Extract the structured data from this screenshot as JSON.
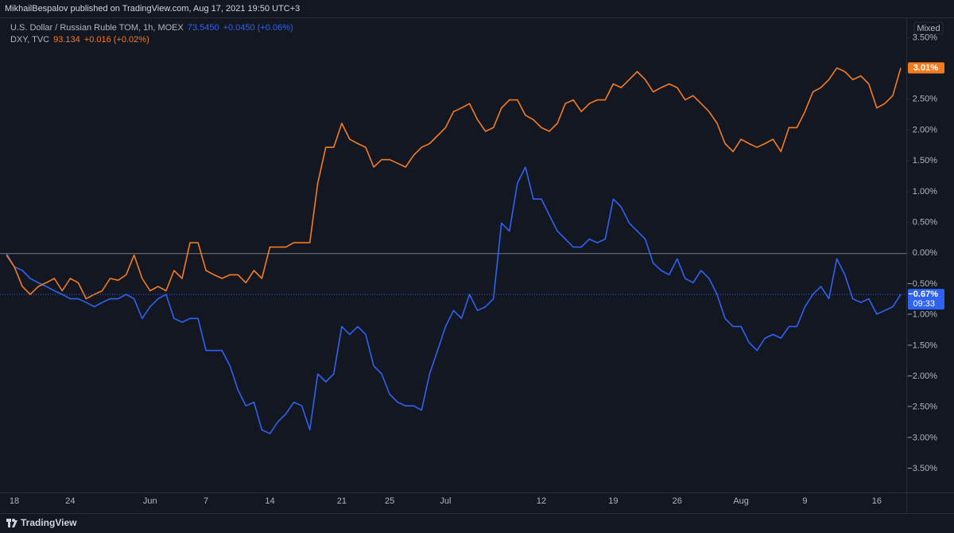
{
  "header": "MikhailBespalov published on TradingView.com, Aug 17, 2021 19:50 UTC+3",
  "footer": "TradingView",
  "chart_data": {
    "type": "line",
    "scale_mode": "Mixed",
    "categories": [
      null,
      "18",
      null,
      null,
      null,
      null,
      null,
      null,
      "24",
      null,
      null,
      null,
      null,
      null,
      null,
      null,
      null,
      null,
      "Jun",
      null,
      null,
      null,
      null,
      null,
      null,
      "7",
      null,
      null,
      null,
      null,
      null,
      null,
      null,
      "14",
      null,
      null,
      null,
      null,
      null,
      null,
      null,
      null,
      "21",
      null,
      null,
      null,
      null,
      null,
      "25",
      null,
      null,
      null,
      null,
      null,
      null,
      "Jul",
      null,
      null,
      null,
      null,
      null,
      null,
      null,
      null,
      null,
      null,
      null,
      "12",
      null,
      null,
      null,
      null,
      null,
      null,
      null,
      null,
      "19",
      null,
      null,
      null,
      null,
      null,
      null,
      null,
      "26",
      null,
      null,
      null,
      null,
      null,
      null,
      null,
      "Aug",
      null,
      null,
      null,
      null,
      null,
      null,
      null,
      "9",
      null,
      null,
      null,
      null,
      null,
      null,
      null,
      null,
      "16",
      null,
      null,
      null
    ],
    "series": [
      {
        "name": "U.S. Dollar / Russian Ruble TOM, 1h, MOEX",
        "legend_price": "73.5450",
        "legend_change": "+0.0450 (+0.06%)",
        "last_label": "−0.67%",
        "countdown": "09:33",
        "color": "#2f62f0",
        "values": [
          0,
          -0.22,
          -0.28,
          -0.41,
          -0.48,
          -0.54,
          -0.61,
          -0.67,
          -0.74,
          -0.74,
          -0.8,
          -0.87,
          -0.8,
          -0.74,
          -0.74,
          -0.67,
          -0.74,
          -1.06,
          -0.87,
          -0.74,
          -0.67,
          -1.06,
          -1.12,
          -1.06,
          -1.06,
          -1.58,
          -1.58,
          -1.58,
          -1.83,
          -2.22,
          -2.48,
          -2.42,
          -2.87,
          -2.93,
          -2.74,
          -2.61,
          -2.42,
          -2.48,
          -2.87,
          -1.96,
          -2.09,
          -1.96,
          -1.19,
          -1.32,
          -1.19,
          -1.32,
          -1.83,
          -1.96,
          -2.29,
          -2.42,
          -2.48,
          -2.48,
          -2.55,
          -1.96,
          -1.58,
          -1.19,
          -0.93,
          -1.06,
          -0.67,
          -0.93,
          -0.87,
          -0.74,
          0.49,
          0.36,
          1.14,
          1.4,
          0.88,
          0.88,
          0.62,
          0.36,
          0.23,
          0.1,
          0.1,
          0.23,
          0.17,
          0.23,
          0.88,
          0.75,
          0.49,
          0.36,
          0.23,
          -0.16,
          -0.28,
          -0.35,
          -0.09,
          -0.41,
          -0.48,
          -0.28,
          -0.41,
          -0.67,
          -1.06,
          -1.19,
          -1.19,
          -1.45,
          -1.58,
          -1.38,
          -1.32,
          -1.38,
          -1.19,
          -1.19,
          -0.87,
          -0.67,
          -0.54,
          -0.74,
          -0.09,
          -0.35,
          -0.74,
          -0.8,
          -0.74,
          -0.99,
          -0.93,
          -0.87,
          -0.67
        ]
      },
      {
        "name": "DXY, TVC",
        "legend_price": "93.134",
        "legend_change": "+0.016 (+0.02%)",
        "last_label": "3.01%",
        "color": "#f57b20",
        "values": [
          -0.03,
          -0.22,
          -0.54,
          -0.67,
          -0.54,
          -0.48,
          -0.41,
          -0.61,
          -0.41,
          -0.48,
          -0.74,
          -0.67,
          -0.61,
          -0.41,
          -0.44,
          -0.35,
          -0.03,
          -0.41,
          -0.61,
          -0.54,
          -0.61,
          -0.28,
          -0.41,
          0.17,
          0.17,
          -0.28,
          -0.35,
          -0.41,
          -0.35,
          -0.35,
          -0.48,
          -0.28,
          -0.41,
          0.1,
          0.1,
          0.1,
          0.17,
          0.17,
          0.17,
          1.14,
          1.72,
          1.72,
          2.11,
          1.85,
          1.78,
          1.72,
          1.4,
          1.52,
          1.52,
          1.46,
          1.4,
          1.59,
          1.72,
          1.78,
          1.91,
          2.04,
          2.3,
          2.36,
          2.43,
          2.17,
          1.98,
          2.04,
          2.36,
          2.49,
          2.49,
          2.24,
          2.17,
          2.04,
          1.98,
          2.11,
          2.43,
          2.49,
          2.3,
          2.43,
          2.49,
          2.49,
          2.75,
          2.69,
          2.82,
          2.95,
          2.82,
          2.62,
          2.69,
          2.75,
          2.69,
          2.49,
          2.56,
          2.43,
          2.3,
          2.11,
          1.78,
          1.65,
          1.85,
          1.78,
          1.72,
          1.78,
          1.85,
          1.65,
          2.04,
          2.04,
          2.3,
          2.62,
          2.69,
          2.82,
          3.01,
          2.95,
          2.82,
          2.88,
          2.75,
          2.36,
          2.43,
          2.56,
          3.01
        ]
      }
    ],
    "ylim": [
      -3.86,
      3.79
    ],
    "yticks": [
      {
        "value": 3.5,
        "label": "3.50%"
      },
      {
        "value": 3,
        "label": "3.00%"
      },
      {
        "value": 2.5,
        "label": "2.50%"
      },
      {
        "value": 2,
        "label": "2.00%"
      },
      {
        "value": 1.5,
        "label": "1.50%"
      },
      {
        "value": 1,
        "label": "1.00%"
      },
      {
        "value": 0.5,
        "label": "0.50%"
      },
      {
        "value": 0,
        "label": "0.00%"
      },
      {
        "value": -0.5,
        "label": "−0.50%"
      },
      {
        "value": -1,
        "label": "−1.00%"
      },
      {
        "value": -1.5,
        "label": "−1.50%"
      },
      {
        "value": -2,
        "label": "−2.00%"
      },
      {
        "value": -2.5,
        "label": "−2.50%"
      },
      {
        "value": -3,
        "label": "−3.00%"
      },
      {
        "value": -3.5,
        "label": "−3.50%"
      }
    ],
    "zero_line": true
  }
}
